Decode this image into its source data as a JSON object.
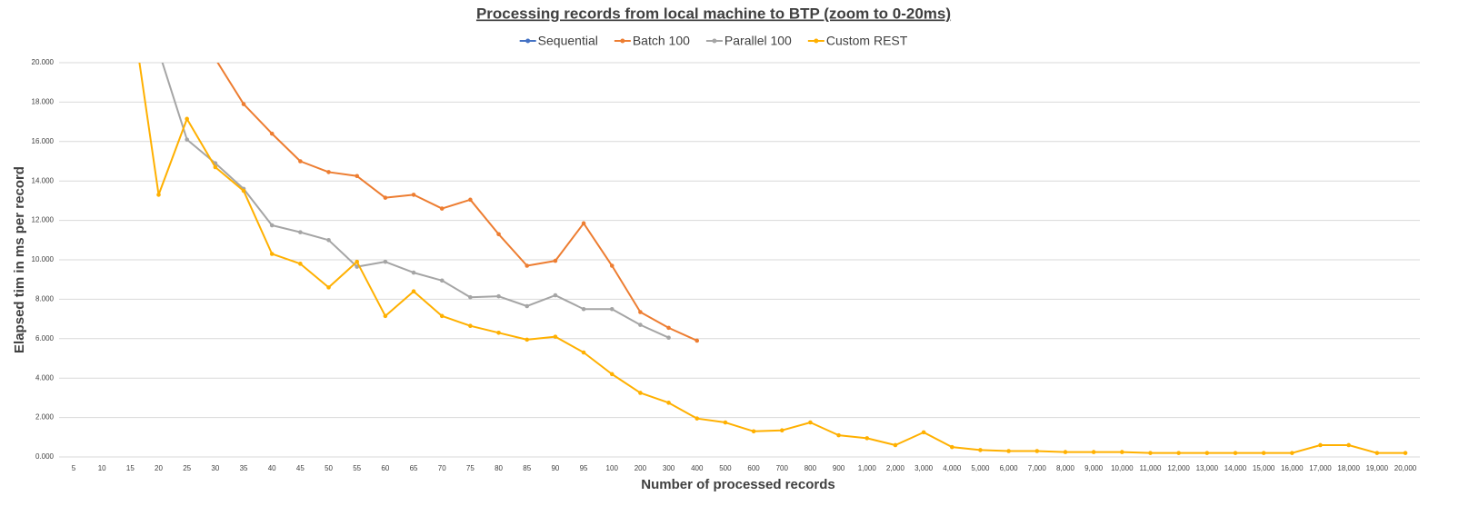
{
  "chart_data": {
    "type": "line",
    "title": "Processing records from local machine to BTP (zoom to 0-20ms)",
    "x_label": "Number of processed records",
    "y_label": "Elapsed tim in ms per record",
    "categories": [
      "5",
      "10",
      "15",
      "20",
      "25",
      "30",
      "35",
      "40",
      "45",
      "50",
      "55",
      "60",
      "65",
      "70",
      "75",
      "80",
      "85",
      "90",
      "95",
      "100",
      "200",
      "300",
      "400",
      "500",
      "600",
      "700",
      "800",
      "900",
      "1,000",
      "2,000",
      "3,000",
      "4,000",
      "5,000",
      "6,000",
      "7,000",
      "8,000",
      "9,000",
      "10,000",
      "11,000",
      "12,000",
      "13,000",
      "14,000",
      "15,000",
      "16,000",
      "17,000",
      "18,000",
      "19,000",
      "20,000"
    ],
    "ylim": [
      0,
      20
    ],
    "yticks": [
      {
        "value": 0,
        "label": "0.000"
      },
      {
        "value": 2,
        "label": "2.000"
      },
      {
        "value": 4,
        "label": "4.000"
      },
      {
        "value": 6,
        "label": "6.000"
      },
      {
        "value": 8,
        "label": "8.000"
      },
      {
        "value": 10,
        "label": "10.000"
      },
      {
        "value": 12,
        "label": "12.000"
      },
      {
        "value": 14,
        "label": "14.000"
      },
      {
        "value": 16,
        "label": "16.000"
      },
      {
        "value": 18,
        "label": "18.000"
      },
      {
        "value": 20,
        "label": "20.000"
      }
    ],
    "grid": true,
    "legend": "top",
    "series": [
      {
        "name": "Sequential",
        "color": "#4472c4",
        "values": [
          null,
          null,
          null,
          null,
          null,
          null,
          null,
          null,
          null,
          null,
          null,
          null,
          null,
          null,
          null,
          null,
          null,
          null,
          null,
          null,
          null,
          null,
          null,
          null,
          null,
          null,
          null,
          null,
          null,
          null,
          null,
          null,
          null,
          null,
          null,
          null,
          null,
          null,
          null,
          null,
          null,
          null,
          null,
          null,
          null,
          null,
          null,
          null
        ]
      },
      {
        "name": "Batch 100",
        "color": "#ed7d31",
        "values": [
          null,
          null,
          null,
          null,
          null,
          20.2,
          17.9,
          16.4,
          15.0,
          14.45,
          14.25,
          13.15,
          13.3,
          12.6,
          13.05,
          11.3,
          9.7,
          9.95,
          11.85,
          9.7,
          7.35,
          6.55,
          5.9,
          null,
          null,
          null,
          null,
          null,
          null,
          null,
          null,
          null,
          null,
          null,
          null,
          null,
          null,
          null,
          null,
          null,
          null,
          null,
          null,
          null,
          null,
          null,
          null,
          null
        ]
      },
      {
        "name": "Parallel 100",
        "color": "#a5a5a5",
        "values": [
          null,
          null,
          null,
          20.6,
          16.1,
          14.9,
          13.6,
          11.75,
          11.4,
          11.0,
          9.65,
          9.9,
          9.35,
          8.95,
          8.1,
          8.15,
          7.65,
          8.2,
          7.5,
          7.5,
          6.7,
          6.05,
          null,
          null,
          null,
          null,
          null,
          null,
          null,
          null,
          null,
          null,
          null,
          null,
          null,
          null,
          null,
          null,
          null,
          null,
          null,
          null,
          null,
          null,
          null,
          null,
          null,
          null
        ]
      },
      {
        "name": "Custom REST",
        "color": "#ffb000",
        "values": [
          null,
          null,
          23.2,
          13.3,
          17.15,
          14.7,
          13.5,
          10.3,
          9.8,
          8.6,
          9.9,
          7.15,
          8.4,
          7.15,
          6.65,
          6.3,
          5.95,
          6.1,
          5.3,
          4.2,
          3.25,
          2.75,
          1.95,
          1.75,
          1.3,
          1.35,
          1.75,
          1.1,
          0.95,
          0.6,
          1.25,
          0.5,
          0.35,
          0.3,
          0.3,
          0.25,
          0.25,
          0.25,
          0.2,
          0.2,
          0.2,
          0.2,
          0.2,
          0.2,
          0.6,
          0.6,
          0.2,
          0.2
        ]
      }
    ]
  }
}
